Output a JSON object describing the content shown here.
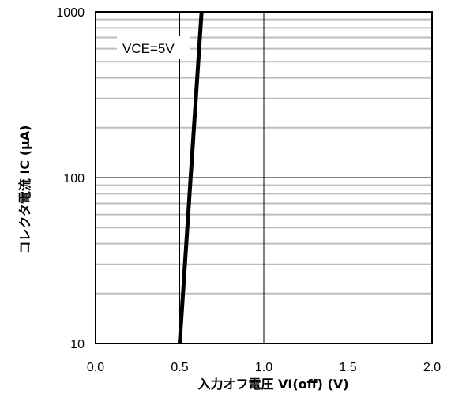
{
  "chart_data": {
    "type": "line",
    "xlabel": "入力オフ電圧 VI(off) (V)",
    "ylabel": "コレクタ電流 IC (μA)",
    "xlim": [
      0.0,
      2.0
    ],
    "ylim": [
      10,
      1000
    ],
    "yscale": "log",
    "x_ticks": [
      "0.0",
      "0.5",
      "1.0",
      "1.5",
      "2.0"
    ],
    "y_ticks": [
      "10",
      "100",
      "1000"
    ],
    "grid": true,
    "series": [
      {
        "x": [
          0.5,
          0.63
        ],
        "y": [
          10,
          1000
        ]
      }
    ],
    "annotation": "VCE=5V",
    "colors": {
      "line": "#000000",
      "major_grid": "#000000",
      "minor_grid": "#bdbdbd",
      "frame": "#000000"
    }
  }
}
